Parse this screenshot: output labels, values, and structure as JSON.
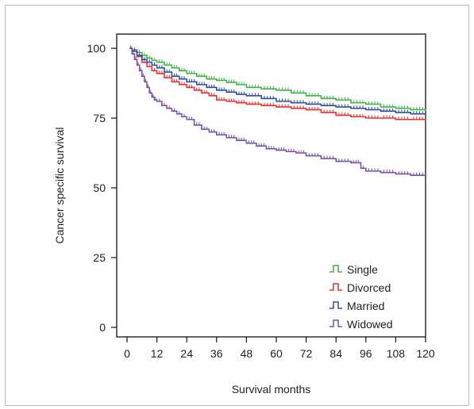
{
  "chart_data": {
    "type": "line",
    "title": "",
    "xlabel": "Survival months",
    "ylabel": "Cancer specific survival",
    "xlim": [
      0,
      120
    ],
    "ylim": [
      0,
      100
    ],
    "xticks": [
      0,
      12,
      24,
      36,
      48,
      60,
      72,
      84,
      96,
      108,
      120
    ],
    "yticks": [
      0,
      25,
      50,
      75,
      100
    ],
    "grid": false,
    "legend_position": "bottom-right",
    "step": true,
    "series": [
      {
        "name": "Single",
        "color": "#3db845",
        "x": [
          1,
          2,
          4,
          6,
          8,
          10,
          12,
          15,
          18,
          21,
          24,
          28,
          32,
          36,
          40,
          44,
          48,
          54,
          60,
          66,
          72,
          78,
          84,
          90,
          96,
          102,
          108,
          114,
          120
        ],
        "y": [
          100,
          99.5,
          98.5,
          97.5,
          96.5,
          95.7,
          95,
          94,
          93,
          92,
          91,
          90,
          89,
          88.5,
          87.8,
          87,
          86,
          85.5,
          85,
          84,
          83,
          82,
          81.5,
          80.5,
          80,
          79,
          78.5,
          78,
          77.5
        ]
      },
      {
        "name": "Divorced",
        "color": "#f02e2e",
        "x": [
          1,
          2,
          4,
          6,
          8,
          10,
          12,
          15,
          18,
          21,
          24,
          27,
          30,
          33,
          36,
          40,
          44,
          48,
          54,
          60,
          66,
          72,
          78,
          84,
          90,
          96,
          102,
          108,
          114,
          120
        ],
        "y": [
          100,
          99,
          97,
          95,
          93.5,
          92,
          91,
          89.5,
          88,
          87,
          86,
          85,
          84,
          83,
          81.5,
          81,
          80.5,
          80,
          79.5,
          79,
          78.5,
          78,
          77,
          76,
          75.5,
          75,
          75,
          74.5,
          74.5,
          74
        ]
      },
      {
        "name": "Married",
        "color": "#2e4fa8",
        "x": [
          1,
          2,
          4,
          6,
          8,
          10,
          12,
          15,
          18,
          21,
          24,
          28,
          32,
          36,
          40,
          44,
          48,
          54,
          60,
          66,
          72,
          78,
          84,
          90,
          96,
          102,
          108,
          114,
          120
        ],
        "y": [
          100,
          99,
          97.5,
          96,
          95,
          94,
          93,
          91.5,
          90,
          89,
          88,
          87,
          86,
          85,
          84.3,
          83.5,
          83,
          82,
          81,
          80.5,
          80,
          79.5,
          79,
          78.5,
          78,
          77.5,
          77,
          76.5,
          76
        ]
      },
      {
        "name": "Widowed",
        "color": "#7c4fb0",
        "x": [
          1,
          2,
          3,
          4,
          5,
          6,
          7,
          8,
          9,
          10,
          11,
          12,
          14,
          16,
          18,
          20,
          22,
          24,
          27,
          30,
          33,
          36,
          40,
          44,
          48,
          52,
          56,
          60,
          64,
          68,
          72,
          78,
          84,
          90,
          94,
          96,
          102,
          108,
          114,
          120
        ],
        "y": [
          100,
          98,
          96,
          94,
          92,
          90,
          88,
          86,
          84,
          82.5,
          81.5,
          81,
          79.5,
          78.5,
          77.5,
          76.5,
          75.5,
          74.5,
          72.5,
          71,
          70,
          69,
          68,
          67,
          66,
          65,
          64,
          63.5,
          63,
          62.5,
          61.5,
          60.5,
          59.5,
          59,
          57,
          56,
          55.5,
          55,
          54.5,
          54.5
        ]
      }
    ]
  }
}
